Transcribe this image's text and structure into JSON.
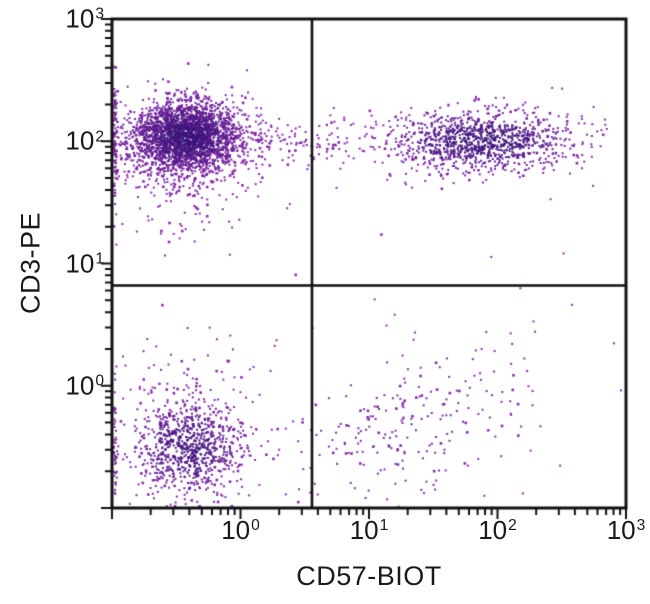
{
  "figure": {
    "description": "Two-color flow cytometry dot plot with quadrant gates"
  },
  "chart_data": {
    "type": "scatter",
    "subtype": "flow_cytometry_dot_plot",
    "title": "",
    "xlabel": "CD57-BIOT",
    "ylabel": "CD3-PE",
    "x_scale": "log",
    "y_scale": "log",
    "xlim": [
      0.1,
      1000
    ],
    "ylim": [
      0.1,
      1000
    ],
    "x_ticks": [
      {
        "base": "10",
        "exp": "0",
        "value": 1
      },
      {
        "base": "10",
        "exp": "1",
        "value": 10
      },
      {
        "base": "10",
        "exp": "2",
        "value": 100
      },
      {
        "base": "10",
        "exp": "3",
        "value": 1000
      }
    ],
    "y_ticks": [
      {
        "base": "10",
        "exp": "0",
        "value": 1
      },
      {
        "base": "10",
        "exp": "1",
        "value": 10
      },
      {
        "base": "10",
        "exp": "2",
        "value": 100
      },
      {
        "base": "10",
        "exp": "3",
        "value": 1000
      }
    ],
    "minor_ticks": "log decades, mantissas 2-9",
    "grid": false,
    "legend": false,
    "quadrant_gates": {
      "x": 3.6,
      "y": 6.6
    },
    "colors": {
      "dot_fringe": "#8826AC",
      "dot_dense_core": "#3A1478",
      "axis": "#111111",
      "background": "#FFFFFF"
    },
    "seed": 42,
    "clusters": [
      {
        "name": "CD3+CD57- upper-left dense population",
        "n": 2600,
        "center_log10": [
          -0.42,
          2.03
        ],
        "sigma_log10": [
          0.22,
          0.155
        ]
      },
      {
        "name": "CD3+ diffuse halo below main population",
        "n": 130,
        "center_log10": [
          -0.4,
          1.6
        ],
        "sigma_log10": [
          0.28,
          0.28
        ]
      },
      {
        "name": "CD3+ bridge band across gate",
        "n": 160,
        "center_log10": [
          0.45,
          2.0
        ],
        "sigma_log10": [
          0.45,
          0.1
        ]
      },
      {
        "name": "CD3+CD57+ upper-right population",
        "n": 1050,
        "center_log10": [
          1.88,
          2.0
        ],
        "sigma_log10": [
          0.36,
          0.125
        ]
      },
      {
        "name": "CD3-CD57- lower-left population",
        "n": 800,
        "center_log10": [
          -0.4,
          -0.5
        ],
        "sigma_log10": [
          0.21,
          0.2
        ],
        "clamp": true
      },
      {
        "name": "lower-left halo",
        "n": 90,
        "center_log10": [
          -0.35,
          -0.15
        ],
        "sigma_log10": [
          0.3,
          0.3
        ],
        "clamp": true
      },
      {
        "name": "CD3-CD57+ lower-right sparse population",
        "n": 230,
        "center_log10": [
          1.3,
          -0.38
        ],
        "sigma_log10": [
          0.52,
          0.3
        ],
        "rho": 0.4
      }
    ],
    "edge_pileups": [
      {
        "name": "left-edge pileup CD3+",
        "n": 90,
        "y_center_log10": 2.0,
        "y_sigma_log10": 0.25
      },
      {
        "name": "left-edge pileup CD3-",
        "n": 45,
        "y_center_log10": -0.5,
        "y_sigma_log10": 0.22
      }
    ],
    "noise": {
      "n": 70,
      "x_range_log10": [
        -1,
        2.55
      ],
      "y_range_log10": [
        -1,
        2.5
      ]
    }
  }
}
